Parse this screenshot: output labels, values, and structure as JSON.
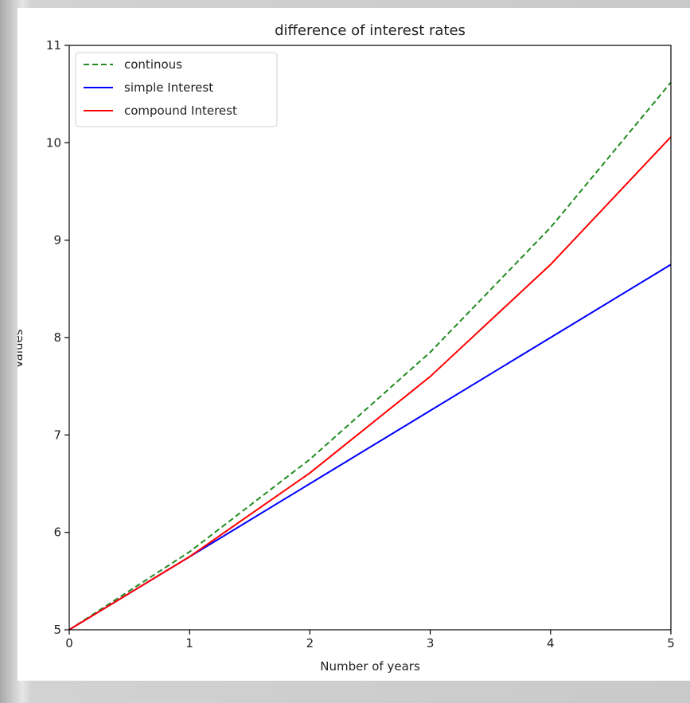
{
  "chart_data": {
    "type": "line",
    "title": "difference of interest rates",
    "xlabel": "Number of years",
    "ylabel": "Values",
    "xlim": [
      0,
      5
    ],
    "ylim": [
      5,
      11
    ],
    "xticks": [
      0,
      1,
      2,
      3,
      4,
      5
    ],
    "yticks": [
      5,
      6,
      7,
      8,
      9,
      10,
      11
    ],
    "grid": false,
    "legend_position": "top-left",
    "series": [
      {
        "name": "continous",
        "color": "#228b22",
        "dash": "dashed",
        "x": [
          0,
          1,
          2,
          3,
          4,
          5
        ],
        "values": [
          5.0,
          5.8,
          6.75,
          7.85,
          9.13,
          10.62
        ]
      },
      {
        "name": "simple Interest",
        "color": "#0000ff",
        "dash": "solid",
        "x": [
          0,
          1,
          2,
          3,
          4,
          5
        ],
        "values": [
          5.0,
          5.75,
          6.5,
          7.25,
          8.0,
          8.75
        ]
      },
      {
        "name": "compound Interest",
        "color": "#ff0000",
        "dash": "solid",
        "x": [
          0,
          1,
          2,
          3,
          4,
          5
        ],
        "values": [
          5.0,
          5.75,
          6.61,
          7.6,
          8.75,
          10.06
        ]
      }
    ]
  }
}
